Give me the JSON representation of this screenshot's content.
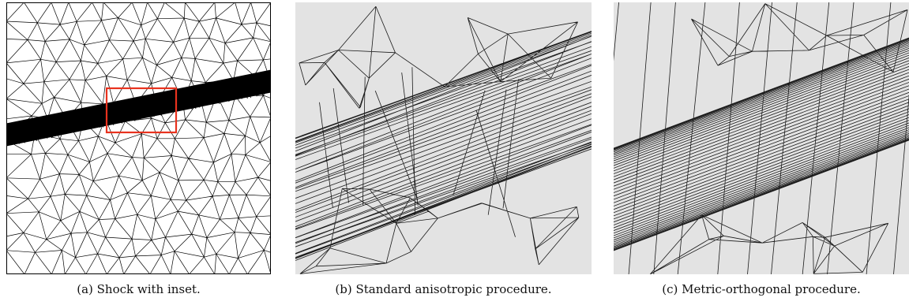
{
  "figure": {
    "panels": [
      {
        "id": "a",
        "caption": "(a) Shock with inset.",
        "background": "#ffffff",
        "stroke": "#000000"
      },
      {
        "id": "b",
        "caption": "(b) Standard anisotropic procedure.",
        "background": "#e3e3e3",
        "stroke": "#1a1a1a"
      },
      {
        "id": "c",
        "caption": "(c) Metric-orthogonal procedure.",
        "background": "#e3e3e3",
        "stroke": "#1a1a1a"
      }
    ],
    "inset_color": "#e8321e"
  }
}
